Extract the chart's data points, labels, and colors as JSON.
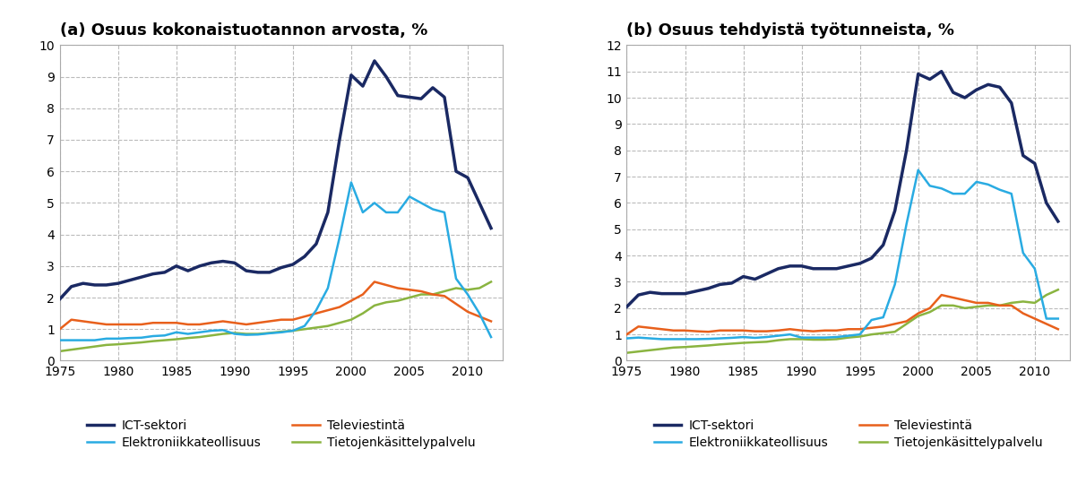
{
  "title_a": "(a) Osuus kokonaistuotannon arvosta, %",
  "title_b": "(b) Osuus tehdyistä työtunneista, %",
  "years": [
    1975,
    1976,
    1977,
    1978,
    1979,
    1980,
    1981,
    1982,
    1983,
    1984,
    1985,
    1986,
    1987,
    1988,
    1989,
    1990,
    1991,
    1992,
    1993,
    1994,
    1995,
    1996,
    1997,
    1998,
    1999,
    2000,
    2001,
    2002,
    2003,
    2004,
    2005,
    2006,
    2007,
    2008,
    2009,
    2010,
    2011,
    2012
  ],
  "panel_a": {
    "ict_sektori": [
      1.95,
      2.35,
      2.45,
      2.4,
      2.4,
      2.45,
      2.55,
      2.65,
      2.75,
      2.8,
      3.0,
      2.85,
      3.0,
      3.1,
      3.15,
      3.1,
      2.85,
      2.8,
      2.8,
      2.95,
      3.05,
      3.3,
      3.7,
      4.7,
      7.0,
      9.05,
      8.7,
      9.5,
      9.0,
      8.4,
      8.35,
      8.3,
      8.65,
      8.35,
      6.0,
      5.8,
      5.0,
      4.2
    ],
    "elektroniikka": [
      0.65,
      0.65,
      0.65,
      0.65,
      0.7,
      0.7,
      0.72,
      0.73,
      0.78,
      0.8,
      0.9,
      0.85,
      0.9,
      0.95,
      0.97,
      0.85,
      0.82,
      0.83,
      0.87,
      0.9,
      0.95,
      1.1,
      1.6,
      2.3,
      3.9,
      5.65,
      4.7,
      5.0,
      4.7,
      4.7,
      5.2,
      5.0,
      4.8,
      4.7,
      2.6,
      2.1,
      1.5,
      0.75
    ],
    "televiestinta": [
      1.0,
      1.3,
      1.25,
      1.2,
      1.15,
      1.15,
      1.15,
      1.15,
      1.2,
      1.2,
      1.2,
      1.15,
      1.15,
      1.2,
      1.25,
      1.2,
      1.15,
      1.2,
      1.25,
      1.3,
      1.3,
      1.4,
      1.5,
      1.6,
      1.7,
      1.9,
      2.1,
      2.5,
      2.4,
      2.3,
      2.25,
      2.2,
      2.1,
      2.05,
      1.8,
      1.55,
      1.4,
      1.25
    ],
    "tietojenkasittely": [
      0.3,
      0.35,
      0.4,
      0.45,
      0.5,
      0.52,
      0.55,
      0.58,
      0.62,
      0.65,
      0.68,
      0.72,
      0.75,
      0.8,
      0.85,
      0.88,
      0.85,
      0.85,
      0.88,
      0.92,
      0.95,
      1.0,
      1.05,
      1.1,
      1.2,
      1.3,
      1.5,
      1.75,
      1.85,
      1.9,
      2.0,
      2.1,
      2.1,
      2.2,
      2.3,
      2.25,
      2.3,
      2.5
    ]
  },
  "panel_b": {
    "ict_sektori": [
      2.05,
      2.5,
      2.6,
      2.55,
      2.55,
      2.55,
      2.65,
      2.75,
      2.9,
      2.95,
      3.2,
      3.1,
      3.3,
      3.5,
      3.6,
      3.6,
      3.5,
      3.5,
      3.5,
      3.6,
      3.7,
      3.9,
      4.4,
      5.7,
      8.0,
      10.9,
      10.7,
      11.0,
      10.2,
      10.0,
      10.3,
      10.5,
      10.4,
      9.8,
      7.8,
      7.5,
      6.0,
      5.3
    ],
    "elektroniikka": [
      0.85,
      0.88,
      0.85,
      0.82,
      0.82,
      0.82,
      0.82,
      0.83,
      0.85,
      0.87,
      0.9,
      0.87,
      0.9,
      0.95,
      1.0,
      0.88,
      0.88,
      0.88,
      0.9,
      0.95,
      1.0,
      1.55,
      1.65,
      2.9,
      5.2,
      7.25,
      6.65,
      6.55,
      6.35,
      6.35,
      6.8,
      6.7,
      6.5,
      6.35,
      4.1,
      3.5,
      1.6,
      1.6
    ],
    "televiestinta": [
      1.0,
      1.3,
      1.25,
      1.2,
      1.15,
      1.15,
      1.12,
      1.1,
      1.15,
      1.15,
      1.15,
      1.12,
      1.12,
      1.15,
      1.2,
      1.15,
      1.12,
      1.15,
      1.15,
      1.2,
      1.2,
      1.25,
      1.3,
      1.4,
      1.5,
      1.8,
      2.0,
      2.5,
      2.4,
      2.3,
      2.2,
      2.2,
      2.1,
      2.1,
      1.8,
      1.6,
      1.4,
      1.2
    ],
    "tietojenkasittely": [
      0.3,
      0.35,
      0.4,
      0.45,
      0.5,
      0.52,
      0.55,
      0.58,
      0.62,
      0.65,
      0.68,
      0.7,
      0.72,
      0.78,
      0.82,
      0.82,
      0.8,
      0.8,
      0.82,
      0.88,
      0.92,
      1.0,
      1.05,
      1.1,
      1.4,
      1.7,
      1.85,
      2.1,
      2.1,
      2.0,
      2.05,
      2.1,
      2.1,
      2.2,
      2.25,
      2.2,
      2.5,
      2.7
    ]
  },
  "colors": {
    "ict_sektori": "#1a2963",
    "elektroniikka": "#29abe2",
    "televiestinta": "#e8601c",
    "tietojenkasittely": "#8ab440"
  },
  "legend_labels": {
    "ict_sektori": "ICT-sektori",
    "elektroniikka": "Elektroniikkateollisuus",
    "televiestinta": "Televiestintä",
    "tietojenkasittely": "Tietojenkäsittelypalvelu"
  },
  "ylim_a": [
    0,
    10
  ],
  "ylim_b": [
    0,
    12
  ],
  "yticks_a": [
    0,
    1,
    2,
    3,
    4,
    5,
    6,
    7,
    8,
    9,
    10
  ],
  "yticks_b": [
    0,
    1,
    2,
    3,
    4,
    5,
    6,
    7,
    8,
    9,
    10,
    11,
    12
  ],
  "xticks": [
    1975,
    1980,
    1985,
    1990,
    1995,
    2000,
    2005,
    2010
  ],
  "xlim": [
    1975,
    2013
  ],
  "linewidth_ict": 2.5,
  "linewidth": 1.8,
  "background_color": "#ffffff",
  "grid_color": "#bbbbbb",
  "title_fontsize": 13,
  "tick_fontsize": 10,
  "legend_fontsize": 10
}
